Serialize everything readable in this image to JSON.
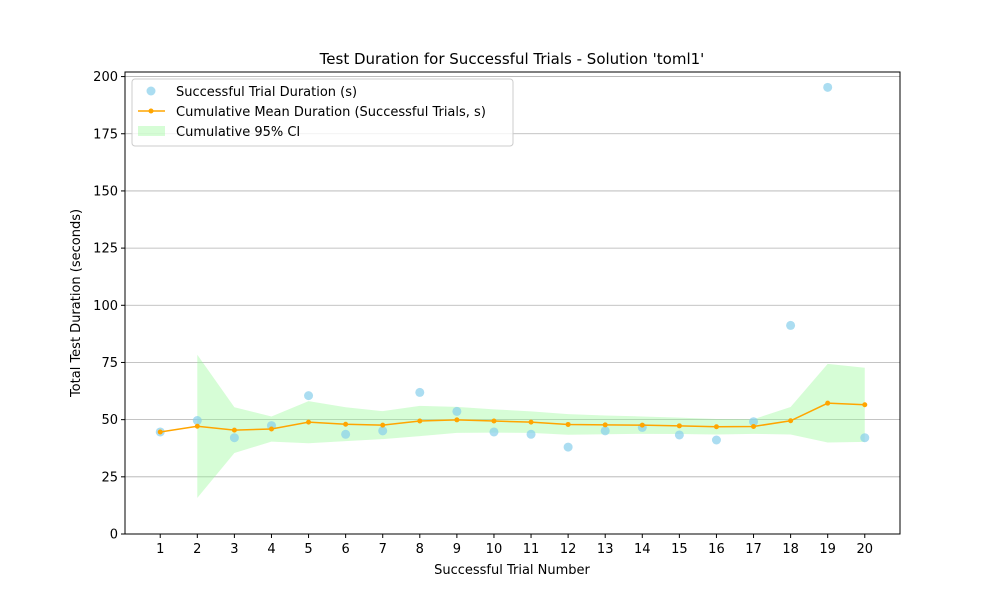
{
  "chart_data": {
    "type": "scatter",
    "title": "Test Duration for Successful Trials - Solution 'toml1'",
    "xlabel": "Successful Trial Number",
    "ylabel": "Total Test Duration (seconds)",
    "xlim": [
      0.05,
      20.95
    ],
    "ylim": [
      0,
      202
    ],
    "x_ticks": [
      1,
      2,
      3,
      4,
      5,
      6,
      7,
      8,
      9,
      10,
      11,
      12,
      13,
      14,
      15,
      16,
      17,
      18,
      19,
      20
    ],
    "y_ticks": [
      0,
      25,
      50,
      75,
      100,
      125,
      150,
      175,
      200
    ],
    "grid": "y",
    "legend_position": "top-left",
    "x": [
      1,
      2,
      3,
      4,
      5,
      6,
      7,
      8,
      9,
      10,
      11,
      12,
      13,
      14,
      15,
      16,
      17,
      18,
      19,
      20
    ],
    "series": [
      {
        "name": "Successful Trial Duration (s)",
        "kind": "scatter",
        "color": "#87ceeb",
        "values": [
          44.6,
          49.6,
          42.1,
          47.4,
          60.5,
          43.6,
          45.1,
          61.9,
          53.6,
          44.6,
          43.6,
          38.0,
          45.1,
          46.6,
          43.3,
          41.1,
          49.1,
          91.2,
          195.3,
          42.1
        ]
      },
      {
        "name": "Cumulative Mean Duration (Successful Trials, s)",
        "kind": "line",
        "color": "#ffa500",
        "values": [
          44.6,
          47.1,
          45.4,
          45.9,
          48.9,
          48.0,
          47.6,
          49.4,
          49.9,
          49.4,
          48.9,
          47.9,
          47.7,
          47.6,
          47.3,
          46.9,
          47.0,
          49.5,
          57.2,
          56.5
        ]
      },
      {
        "name": "Cumulative 95% CI",
        "kind": "band",
        "color": "#98fb98",
        "x": [
          2,
          3,
          4,
          5,
          6,
          7,
          8,
          9,
          10,
          11,
          12,
          13,
          14,
          15,
          16,
          17,
          18,
          19,
          20
        ],
        "lower": [
          15.8,
          35.4,
          40.4,
          39.7,
          40.6,
          41.5,
          42.8,
          44.2,
          44.3,
          44.2,
          43.4,
          43.6,
          43.8,
          43.7,
          43.5,
          43.8,
          43.5,
          40.0,
          40.3
        ],
        "upper": [
          78.4,
          55.4,
          51.4,
          58.1,
          55.4,
          53.7,
          56.0,
          55.6,
          54.5,
          53.6,
          52.4,
          51.8,
          51.4,
          50.9,
          50.3,
          50.2,
          55.5,
          74.4,
          72.7
        ]
      }
    ]
  }
}
